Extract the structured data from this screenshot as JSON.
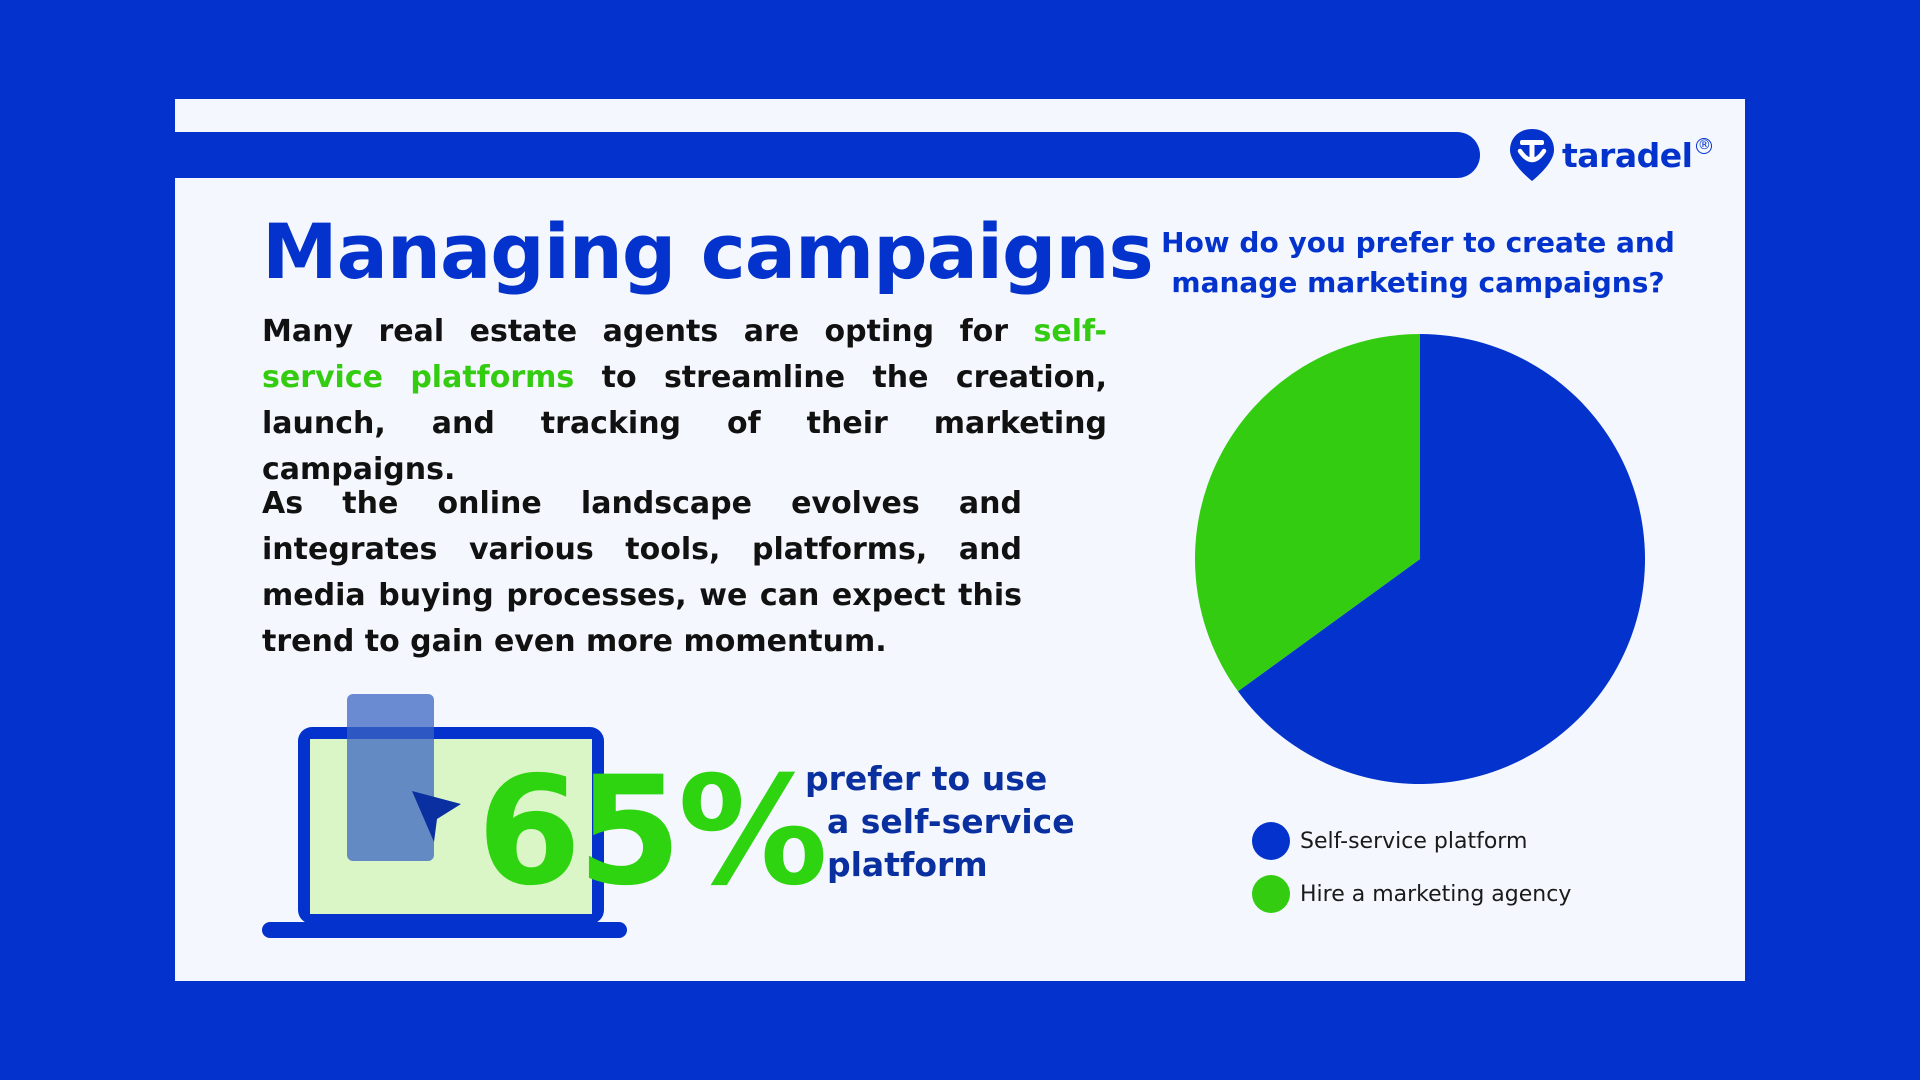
{
  "brand": {
    "name": "taradel",
    "registered": "®"
  },
  "colors": {
    "background": "#0333cc",
    "card": "#f4f7fd",
    "primary": "#0333cc",
    "accent": "#33cc11",
    "text": "#111111"
  },
  "title": "Managing campaigns",
  "paragraph1": {
    "before": "Many real estate agents are opting for ",
    "highlight": "self-service platforms",
    "after": " to streamline the creation, launch, and tracking of their marketing campaigns."
  },
  "paragraph2": "As the online landscape evolves and integrates various tools, platforms, and media buying processes, we can expect this trend to gain even more momentum.",
  "stat": {
    "value": "65%",
    "caption": [
      "prefer to use",
      "a self-service",
      "platform"
    ]
  },
  "chart_data": {
    "type": "pie",
    "title": "How do you prefer to create and manage marketing campaigns?",
    "categories": [
      "Self-service platform",
      "Hire a marketing agency"
    ],
    "values": [
      65,
      35
    ],
    "colors": [
      "#0333cc",
      "#33cc11"
    ],
    "legend": "bottom"
  }
}
